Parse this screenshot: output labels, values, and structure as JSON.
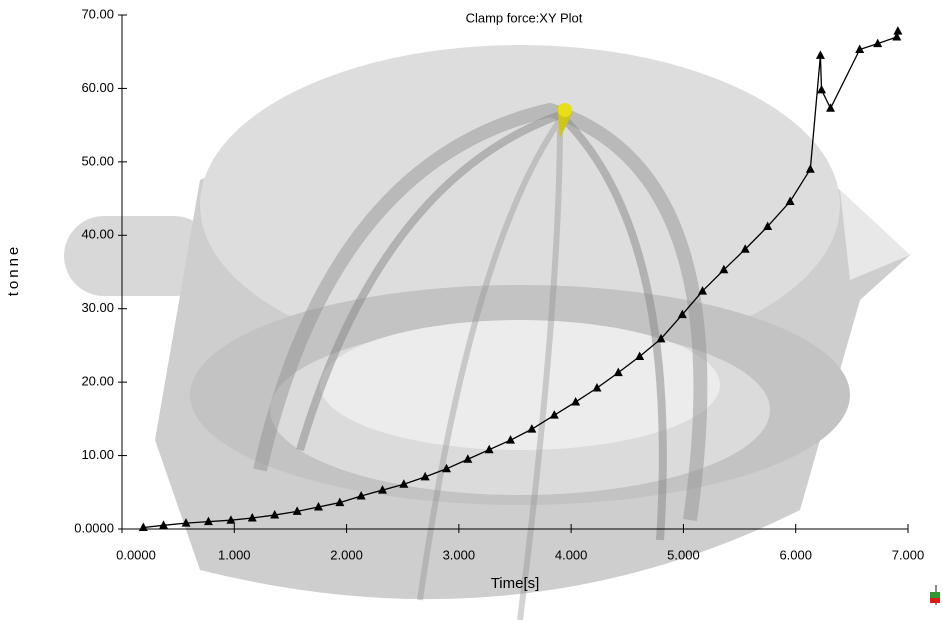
{
  "chart_data": {
    "type": "line",
    "title": "Clamp force:XY Plot",
    "x_label": "Time[s]",
    "y_label": "tonne",
    "x": [
      0.19,
      0.37,
      0.57,
      0.77,
      0.97,
      1.16,
      1.36,
      1.56,
      1.75,
      1.94,
      2.13,
      2.32,
      2.51,
      2.7,
      2.89,
      3.08,
      3.27,
      3.46,
      3.65,
      3.85,
      4.04,
      4.23,
      4.42,
      4.61,
      4.8,
      4.99,
      5.17,
      5.36,
      5.55,
      5.75,
      5.95,
      6.13,
      6.22,
      6.23,
      6.31,
      6.57,
      6.73,
      6.9,
      6.91
    ],
    "values": [
      0.2,
      0.5,
      0.8,
      1.0,
      1.2,
      1.5,
      1.9,
      2.4,
      3.0,
      3.6,
      4.5,
      5.3,
      6.1,
      7.1,
      8.2,
      9.5,
      10.8,
      12.1,
      13.6,
      15.5,
      17.3,
      19.2,
      21.3,
      23.5,
      25.9,
      29.2,
      32.4,
      35.3,
      38.1,
      41.2,
      44.6,
      49.0,
      64.5,
      59.8,
      57.3,
      65.3,
      66.1,
      67.0,
      67.8
    ],
    "color": "#000000",
    "marker": "triangle",
    "xlim": [
      0,
      7
    ],
    "ylim": [
      0,
      70
    ],
    "xticks": [
      {
        "value": 0,
        "label": "0.0000"
      },
      {
        "value": 1,
        "label": "1.000"
      },
      {
        "value": 2,
        "label": "2.000"
      },
      {
        "value": 3,
        "label": "3.000"
      },
      {
        "value": 4,
        "label": "4.000"
      },
      {
        "value": 5,
        "label": "5.000"
      },
      {
        "value": 6,
        "label": "6.000"
      },
      {
        "value": 7,
        "label": "7.000"
      }
    ],
    "yticks": [
      {
        "value": 0,
        "label": "0.0000"
      },
      {
        "value": 10,
        "label": "10.00"
      },
      {
        "value": 20,
        "label": "20.00"
      },
      {
        "value": 30,
        "label": "30.00"
      },
      {
        "value": 40,
        "label": "40.00"
      },
      {
        "value": 50,
        "label": "50.00"
      },
      {
        "value": 60,
        "label": "60.00"
      },
      {
        "value": 70,
        "label": "70.00"
      }
    ]
  }
}
